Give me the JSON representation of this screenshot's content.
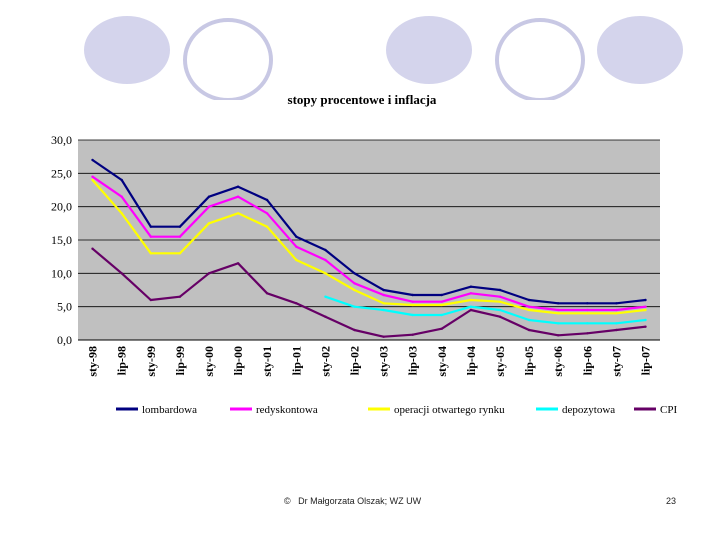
{
  "footer": {
    "copyright_symbol": "©",
    "author": "Dr Małgorzata Olszak; WZ UW",
    "page_number": "23"
  },
  "colors": {
    "plot_bg": "#c0c0c0",
    "deco_fill": "#d4d4ec",
    "deco_stroke": "#c8c8e4"
  },
  "chart_data": {
    "type": "line",
    "title": "stopy procentowe i inflacja",
    "ylim": [
      0,
      30
    ],
    "yticks": [
      "0,0",
      "5,0",
      "10,0",
      "15,0",
      "20,0",
      "25,0",
      "30,0"
    ],
    "grid": true,
    "x": [
      "sty-98",
      "lip-98",
      "sty-99",
      "lip-99",
      "sty-00",
      "lip-00",
      "sty-01",
      "lip-01",
      "sty-02",
      "lip-02",
      "sty-03",
      "lip-03",
      "sty-04",
      "lip-04",
      "sty-05",
      "lip-05",
      "sty-06",
      "lip-06",
      "sty-07",
      "lip-07"
    ],
    "legend_position": "bottom",
    "series": [
      {
        "name": "lombardowa",
        "color": "#000080",
        "values": [
          27,
          24,
          17,
          17,
          21.5,
          23,
          21,
          15.5,
          13.5,
          10,
          7.5,
          6.75,
          6.75,
          8,
          7.5,
          6,
          5.5,
          5.5,
          5.5,
          6
        ]
      },
      {
        "name": "redyskontowa",
        "color": "#ff00ff",
        "values": [
          24.5,
          21.5,
          15.5,
          15.5,
          20,
          21.5,
          19,
          14,
          12,
          8.5,
          6.75,
          5.75,
          5.75,
          7,
          6.5,
          5,
          4.5,
          4.5,
          4.5,
          5
        ]
      },
      {
        "name": "operacji otwartego rynku",
        "color": "#ffff00",
        "values": [
          24,
          19,
          13,
          13,
          17.5,
          19,
          17,
          12,
          10,
          7.5,
          5.5,
          5.25,
          5.25,
          6,
          5.75,
          4.5,
          4,
          4,
          4,
          4.5
        ]
      },
      {
        "name": "depozytowa",
        "color": "#00ffff",
        "values": [
          null,
          null,
          null,
          null,
          null,
          null,
          null,
          null,
          6.5,
          5,
          4.5,
          3.75,
          3.75,
          5,
          4.5,
          3,
          2.5,
          2.5,
          2.5,
          3
        ]
      },
      {
        "name": "CPI",
        "color": "#660066",
        "values": [
          13.7,
          10,
          6,
          6.5,
          10,
          11.5,
          7,
          5.5,
          3.5,
          1.5,
          0.5,
          0.8,
          1.7,
          4.5,
          3.5,
          1.5,
          0.7,
          1,
          1.5,
          2
        ]
      }
    ]
  }
}
